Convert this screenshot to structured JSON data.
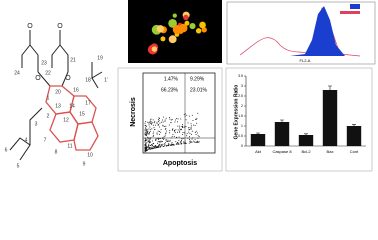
{
  "structure": {
    "atoms": [
      "O",
      "O",
      "24",
      "23",
      "22",
      "21",
      "O",
      "O",
      "20",
      "19",
      "18",
      "1'",
      "16",
      "17",
      "14",
      "15",
      "13",
      "12",
      "11",
      "10",
      "9",
      "8",
      "7",
      "6",
      "5",
      "4",
      "3",
      "2",
      "1"
    ]
  },
  "histogram": {
    "x_label": "FL2-A"
  },
  "flow_cytometry": {
    "y_label": "Necrosis",
    "x_label": "Apoptosis",
    "quadrants": [
      "1.47%",
      "9.29%",
      "66.23%",
      "23.01%"
    ]
  },
  "chart_data": {
    "type": "bar",
    "y_label": "Gene Expression Ratio",
    "categories": [
      "Akt",
      "Caspase 8",
      "Bcl-2",
      "Bax",
      "Cont"
    ],
    "values": [
      0.6,
      1.2,
      0.55,
      2.8,
      1.0
    ],
    "errors": [
      0.05,
      0.1,
      0.06,
      0.2,
      0.08
    ],
    "color": "#111111",
    "ylim": [
      0,
      3.5
    ],
    "yticks": [
      0,
      0.5,
      1,
      1.5,
      2,
      2.5,
      3,
      3.5
    ]
  }
}
